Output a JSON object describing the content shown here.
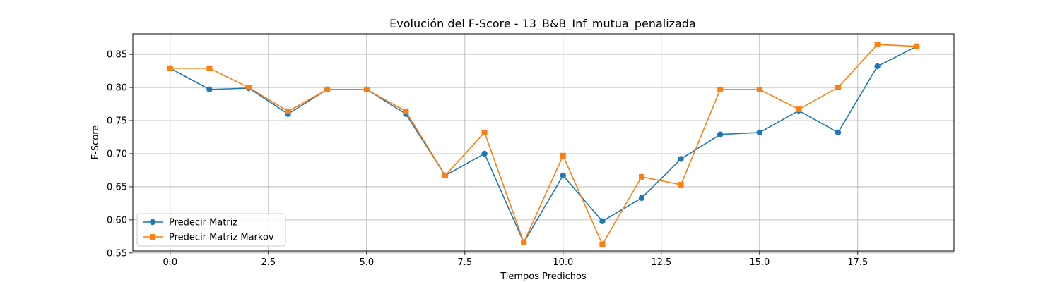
{
  "chart_data": {
    "type": "line",
    "title": "Evolución del F-Score - 13_B&B_Inf_mutua_penalizada",
    "xlabel": "Tiempos Predichos",
    "ylabel": "F-Score",
    "xlim": [
      -0.95,
      19.95
    ],
    "ylim": [
      0.553,
      0.881
    ],
    "xticks": [
      0.0,
      2.5,
      5.0,
      7.5,
      10.0,
      12.5,
      15.0,
      17.5
    ],
    "xtick_labels": [
      "0.0",
      "2.5",
      "5.0",
      "7.5",
      "10.0",
      "12.5",
      "15.0",
      "17.5"
    ],
    "yticks": [
      0.55,
      0.6,
      0.65,
      0.7,
      0.75,
      0.8,
      0.85
    ],
    "ytick_labels": [
      "0.55",
      "0.60",
      "0.65",
      "0.70",
      "0.75",
      "0.80",
      "0.85"
    ],
    "grid": true,
    "legend_position": "lower-left",
    "x": [
      0,
      1,
      2,
      3,
      4,
      5,
      6,
      7,
      8,
      9,
      10,
      11,
      12,
      13,
      14,
      15,
      16,
      17,
      18,
      19
    ],
    "series": [
      {
        "name": "Predecir Matriz",
        "color": "#1f77b4",
        "marker": "circle",
        "values": [
          0.829,
          0.797,
          0.799,
          0.76,
          0.797,
          0.797,
          0.76,
          0.667,
          0.7,
          0.566,
          0.667,
          0.598,
          0.633,
          0.692,
          0.729,
          0.732,
          0.765,
          0.732,
          0.832,
          0.862
        ]
      },
      {
        "name": "Predecir Matriz Markov",
        "color": "#ff7f0e",
        "marker": "square",
        "values": [
          0.829,
          0.829,
          0.8,
          0.764,
          0.797,
          0.797,
          0.764,
          0.667,
          0.732,
          0.566,
          0.697,
          0.563,
          0.665,
          0.653,
          0.797,
          0.797,
          0.767,
          0.8,
          0.865,
          0.862
        ]
      }
    ]
  }
}
